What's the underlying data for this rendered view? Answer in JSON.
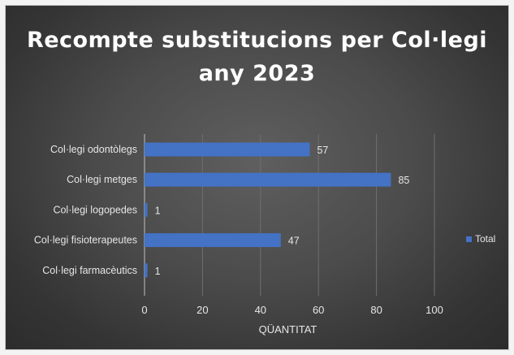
{
  "colors": {
    "bar": "#4472c4",
    "text": "#e6e6e6",
    "grid": "#6f6f6f",
    "axis": "#bfbfbf"
  },
  "chart_data": {
    "type": "bar",
    "orientation": "horizontal",
    "title": [
      "Recompte substitucions per Col·legi",
      "any 2023"
    ],
    "xlabel": "QÜANTITAT",
    "ylabel": "",
    "categories": [
      "Col·legi odontòlegs",
      "Col·legi metges",
      "Col·legi logopedes",
      "Col·legi fisioterapeutes",
      "Col·legi farmacèutics"
    ],
    "series": [
      {
        "name": "Total",
        "values": [
          57,
          85,
          1,
          47,
          1
        ]
      }
    ],
    "xlim": [
      0,
      100
    ],
    "xticks": [
      "0",
      "20",
      "40",
      "60",
      "80",
      "100"
    ],
    "data_labels": true,
    "grid": "vertical",
    "legend_position": "right"
  }
}
